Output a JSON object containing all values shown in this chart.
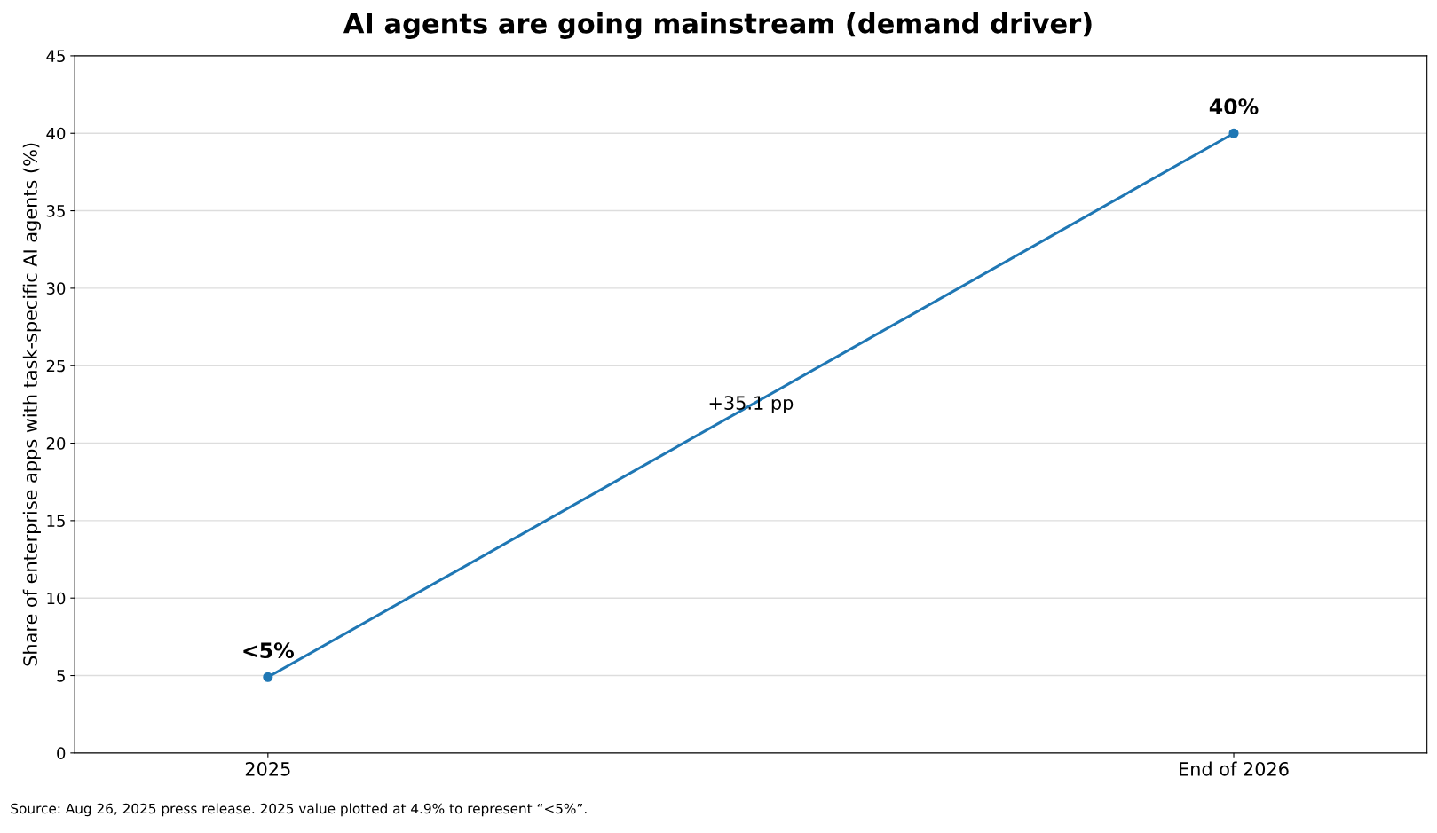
{
  "chart_data": {
    "type": "line",
    "title": "AI agents are going mainstream (demand driver)",
    "ylabel": "Share of enterprise apps with task-specific AI agents (%)",
    "categories": [
      "2025",
      "End of 2026"
    ],
    "series": [
      {
        "color": "#1f77b4",
        "values": [
          4.9,
          40
        ],
        "value_labels": [
          "<5%",
          "40%"
        ]
      }
    ],
    "ylim": [
      0,
      45
    ],
    "yticks": [
      0,
      5,
      10,
      15,
      20,
      25,
      30,
      35,
      40,
      45
    ],
    "grid": "y",
    "marker": "circle",
    "line_style": "solid",
    "annotations": [
      "+35.1 pp",
      "Source: Aug 26, 2025 press release. 2025 value plotted at 4.9% to represent “<5%”."
    ]
  }
}
